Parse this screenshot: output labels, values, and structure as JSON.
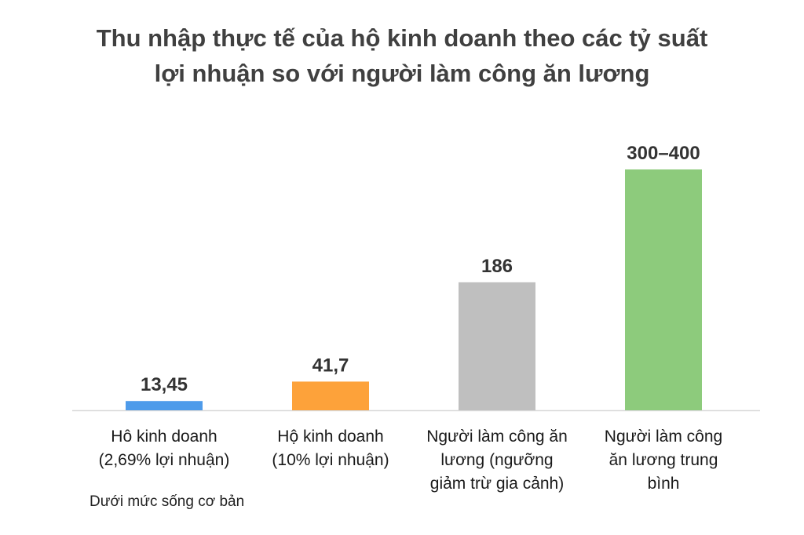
{
  "chart_data": {
    "type": "bar",
    "title_lines": [
      "Thu nhập thực tế của hộ kinh doanh theo các tỷ suất",
      "lợi nhuận so với người làm công ăn lương"
    ],
    "categories": [
      [
        "Hô kinh doanh",
        "(2,69% lợi nhuận)"
      ],
      [
        "Hộ kinh doanh",
        "(10% lợi nhuận)"
      ],
      [
        "Người làm công ăn",
        "lương (ngưỡng",
        "giảm trừ gia cảnh)"
      ],
      [
        "Người làm công",
        "ăn lương trung",
        "bình"
      ]
    ],
    "values": [
      13.45,
      41.7,
      186,
      350
    ],
    "value_labels": [
      "13,45",
      "41,7",
      "186",
      "300–400"
    ],
    "colors": [
      "#4e9bea",
      "#fda23a",
      "#bfbfbf",
      "#8dcb7c"
    ],
    "axis_color": "#d9d9d9",
    "xlabel": "",
    "ylabel": "",
    "grid": false,
    "legend": "none",
    "note": "Dưới mức sống cơ bản"
  }
}
